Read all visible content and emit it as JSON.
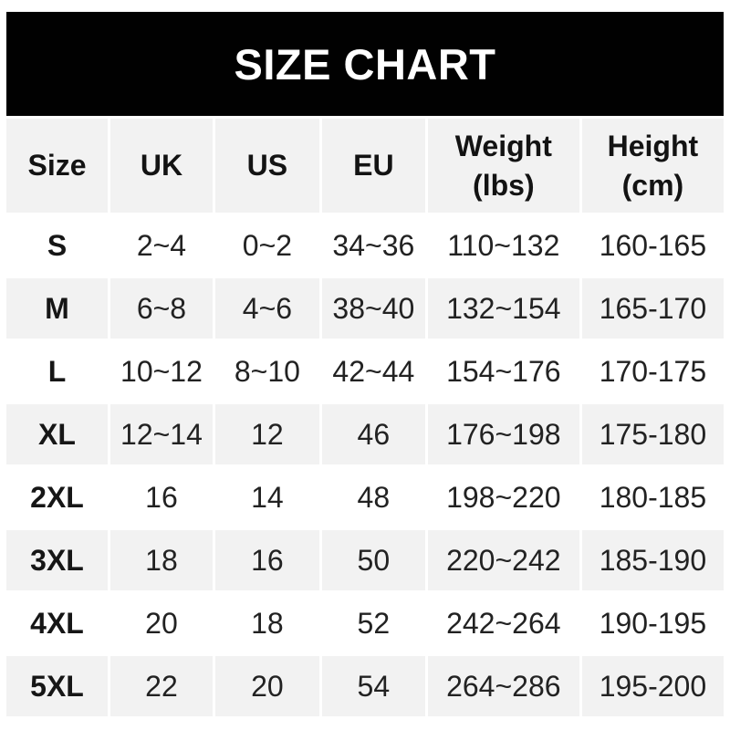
{
  "banner": {
    "title": "SIZE CHART",
    "bg_color": "#010101",
    "text_color": "#ffffff"
  },
  "colors": {
    "row_alt_bg": "#f2f2f2",
    "row_bg": "#ffffff",
    "text": "#222222",
    "bold_text": "#131313"
  },
  "table": {
    "headers": [
      {
        "label": "Size",
        "sub": ""
      },
      {
        "label": "UK",
        "sub": ""
      },
      {
        "label": "US",
        "sub": ""
      },
      {
        "label": "EU",
        "sub": ""
      },
      {
        "label": "Weight",
        "sub": "(lbs)"
      },
      {
        "label": "Height",
        "sub": "(cm)"
      }
    ]
  },
  "chart_data": {
    "type": "table",
    "title": "SIZE CHART",
    "columns": [
      "Size",
      "UK",
      "US",
      "EU",
      "Weight (lbs)",
      "Height (cm)"
    ],
    "rows": [
      [
        "S",
        "2~4",
        "0~2",
        "34~36",
        "110~132",
        "160-165"
      ],
      [
        "M",
        "6~8",
        "4~6",
        "38~40",
        "132~154",
        "165-170"
      ],
      [
        "L",
        "10~12",
        "8~10",
        "42~44",
        "154~176",
        "170-175"
      ],
      [
        "XL",
        "12~14",
        "12",
        "46",
        "176~198",
        "175-180"
      ],
      [
        "2XL",
        "16",
        "14",
        "48",
        "198~220",
        "180-185"
      ],
      [
        "3XL",
        "18",
        "16",
        "50",
        "220~242",
        "185-190"
      ],
      [
        "4XL",
        "20",
        "18",
        "52",
        "242~264",
        "190-195"
      ],
      [
        "5XL",
        "22",
        "20",
        "54",
        "264~286",
        "195-200"
      ]
    ],
    "layout": {
      "alternating_row_shading": true,
      "shaded_rows": [
        "M",
        "XL",
        "3XL",
        "5XL"
      ],
      "header_shaded": true
    }
  }
}
